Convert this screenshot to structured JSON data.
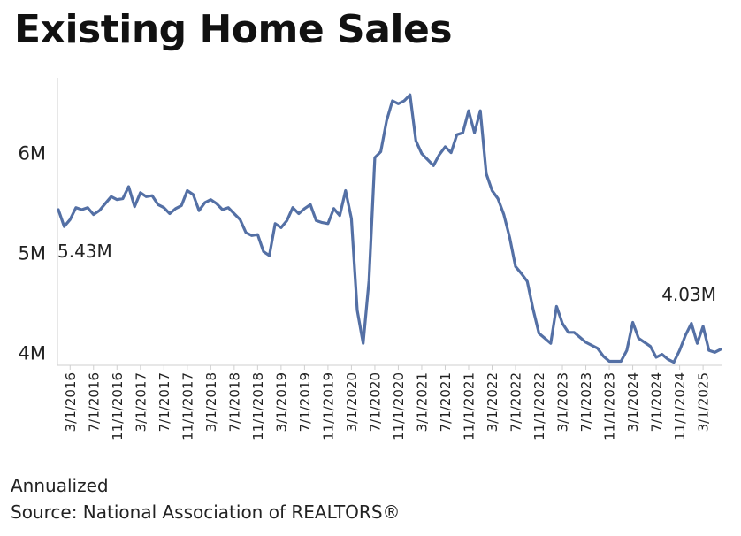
{
  "title": "Existing Home Sales",
  "footnote": "Annualized",
  "source": "Source: National Association of REALTORS®",
  "chart_data": {
    "type": "line",
    "title": "Existing Home Sales",
    "xlabel": "",
    "ylabel": "",
    "ylim": [
      3.87,
      6.75
    ],
    "grid": false,
    "line_color": "#5470a5",
    "y_ticks": [
      {
        "value": 6,
        "label": "6M"
      },
      {
        "value": 5,
        "label": "5M"
      },
      {
        "value": 4,
        "label": "4M"
      }
    ],
    "x_tick_labels": [
      "3/1/2016",
      "7/1/2016",
      "11/1/2016",
      "3/1/2017",
      "7/1/2017",
      "11/1/2017",
      "3/1/2018",
      "7/1/2018",
      "11/1/2018",
      "3/1/2019",
      "7/1/2019",
      "11/1/2019",
      "3/1/2020",
      "7/1/2020",
      "11/1/2020",
      "3/1/2021",
      "7/1/2021",
      "11/1/2021",
      "3/1/2022",
      "7/1/2022",
      "11/1/2022",
      "3/1/2023",
      "7/1/2023",
      "11/1/2023",
      "3/1/2024",
      "7/1/2024",
      "11/1/2024",
      "3/1/2025"
    ],
    "start_label": "5.43M",
    "end_label": "4.03M",
    "series": [
      {
        "start": "2016-01",
        "values": [
          5.43,
          5.26,
          5.33,
          5.45,
          5.43,
          5.45,
          5.38,
          5.42,
          5.49,
          5.56,
          5.53,
          5.54,
          5.66,
          5.46,
          5.6,
          5.56,
          5.57,
          5.48,
          5.45,
          5.39,
          5.44,
          5.47,
          5.62,
          5.58,
          5.42,
          5.5,
          5.53,
          5.49,
          5.43,
          5.45,
          5.39,
          5.33,
          5.2,
          5.17,
          5.18,
          5.01,
          4.97,
          5.29,
          5.25,
          5.32,
          5.45,
          5.39,
          5.44,
          5.48,
          5.32,
          5.3,
          5.29,
          5.44,
          5.37,
          5.62,
          5.34,
          4.42,
          4.09,
          4.72,
          5.95,
          6.01,
          6.32,
          6.52,
          6.49,
          6.52,
          6.58,
          6.12,
          5.99,
          5.93,
          5.87,
          5.98,
          6.06,
          6.0,
          6.18,
          6.2,
          6.42,
          6.2,
          6.42,
          5.79,
          5.62,
          5.54,
          5.38,
          5.15,
          4.86,
          4.79,
          4.71,
          4.43,
          4.19,
          4.14,
          4.09,
          4.46,
          4.29,
          4.2,
          4.2,
          4.15,
          4.1,
          4.07,
          4.04,
          3.96,
          3.91,
          3.91,
          3.91,
          4.02,
          4.3,
          4.14,
          4.1,
          4.06,
          3.95,
          3.98,
          3.93,
          3.9,
          4.02,
          4.17,
          4.29,
          4.09,
          4.26,
          4.02,
          4.0,
          4.03
        ]
      }
    ]
  }
}
